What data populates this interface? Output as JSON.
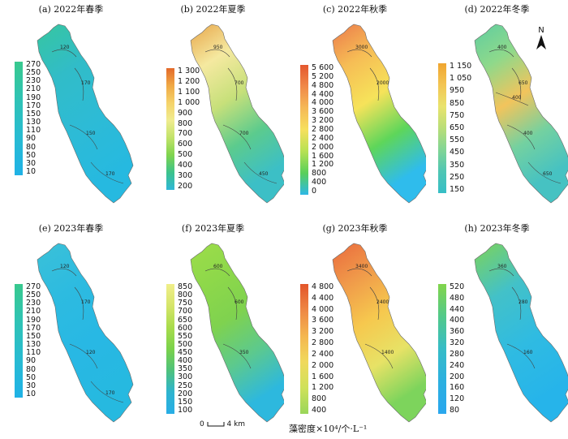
{
  "panels": [
    {
      "title": "(a) 2022年春季",
      "ticks": [
        "270",
        "250",
        "230",
        "210",
        "190",
        "170",
        "150",
        "130",
        "110",
        "90",
        "80",
        "50",
        "30",
        "10"
      ],
      "colors": [
        "#37c6a0",
        "#31bcc8",
        "#2dbbd6",
        "#26b9e0"
      ],
      "contours": [
        "120",
        "170",
        "150",
        "170"
      ]
    },
    {
      "title": "(b) 2022年夏季",
      "ticks": [
        "1 300",
        "1 200",
        "1 100",
        "1 000",
        "900",
        "800",
        "700",
        "600",
        "500",
        "400",
        "300",
        "200"
      ],
      "colors": [
        "#e8a64a",
        "#f5e9a0",
        "#c7e07a",
        "#5ccb8d",
        "#3cbfc6"
      ],
      "contours": [
        "950",
        "700",
        "700",
        "450"
      ]
    },
    {
      "title": "(c) 2022年秋季",
      "ticks": [
        "5 600",
        "5 200",
        "4 800",
        "4 400",
        "4 000",
        "3 600",
        "3 200",
        "2 800",
        "2 400",
        "2 000",
        "1 600",
        "1 200",
        "800",
        "400",
        "0"
      ],
      "colors": [
        "#ec7a4b",
        "#f6bd55",
        "#f6e35a",
        "#5ed65a",
        "#2fbcec"
      ],
      "contours": [
        "3000",
        "2000"
      ]
    },
    {
      "title": "(d) 2022年冬季",
      "ticks": [
        "1 150",
        "1 050",
        "950",
        "850",
        "750",
        "650",
        "550",
        "450",
        "350",
        "250",
        "150"
      ],
      "colors": [
        "#5fcda0",
        "#8ed98b",
        "#f2c45c",
        "#74d1a0",
        "#46c2c2"
      ],
      "contours": [
        "400",
        "650",
        "400",
        "650",
        "400"
      ]
    },
    {
      "title": "(e) 2023年春季",
      "ticks": [
        "270",
        "250",
        "230",
        "210",
        "190",
        "170",
        "150",
        "130",
        "110",
        "90",
        "80",
        "50",
        "30",
        "10"
      ],
      "colors": [
        "#3bc1d8",
        "#2dbbe0",
        "#28b8e4",
        "#26b9e0"
      ],
      "contours": [
        "120",
        "170",
        "120",
        "170"
      ]
    },
    {
      "title": "(f) 2023年夏季",
      "ticks": [
        "850",
        "800",
        "750",
        "700",
        "650",
        "600",
        "550",
        "500",
        "450",
        "400",
        "350",
        "300",
        "250",
        "200",
        "150",
        "100"
      ],
      "colors": [
        "#9ddd4a",
        "#8ed84a",
        "#7fd24f",
        "#5cc98e",
        "#2db8de"
      ],
      "contours": [
        "600",
        "600",
        "350"
      ]
    },
    {
      "title": "(g) 2023年秋季",
      "ticks": [
        "4 800",
        "4 400",
        "4 000",
        "3 600",
        "3 200",
        "2 800",
        "2 400",
        "2 000",
        "1 600",
        "1 200",
        "800",
        "400"
      ],
      "colors": [
        "#ea6a3d",
        "#f09a4a",
        "#f6c84e",
        "#e7e266",
        "#7dd45c"
      ],
      "contours": [
        "3400",
        "2400",
        "1400"
      ]
    },
    {
      "title": "(h) 2023年冬季",
      "ticks": [
        "520",
        "480",
        "440",
        "400",
        "360",
        "320",
        "280",
        "240",
        "200",
        "160",
        "120",
        "80"
      ],
      "colors": [
        "#7dd35a",
        "#43c1c8",
        "#2fbbe2",
        "#26b4ea"
      ],
      "contours": [
        "360",
        "280",
        "160"
      ]
    }
  ],
  "north_label": "N",
  "scale": {
    "zero": "0",
    "dist": "4 km"
  },
  "unit": "藻密度×10⁴/个·L⁻¹",
  "legend_gradients": {
    "a": [
      "#38c98e",
      "#2fc3b5",
      "#28bbd2",
      "#1fb2e6"
    ],
    "b": [
      "#e36a2a",
      "#f0a945",
      "#f5d36a",
      "#f0ec8f",
      "#c2e36a",
      "#7fd44e",
      "#3cc38c",
      "#2fb7d8"
    ],
    "c": [
      "#e4572e",
      "#f08948",
      "#f5b957",
      "#f6e05d",
      "#b6e153",
      "#59cf5a",
      "#2eb8e6"
    ],
    "d": [
      "#f0a530",
      "#f3c553",
      "#e9e36d",
      "#b9de78",
      "#81d595",
      "#4fc6b4",
      "#36bec6"
    ],
    "e": [
      "#38c98e",
      "#2fc3b5",
      "#28bbd2",
      "#1fb2e6"
    ],
    "f": [
      "#f1ef8a",
      "#d6e56a",
      "#a9dc4c",
      "#7bd24b",
      "#4fc27c",
      "#2eb4cf",
      "#28aee6"
    ],
    "g": [
      "#e3552a",
      "#ee8744",
      "#f4b64f",
      "#f0d95c",
      "#cfe15a",
      "#9ad65a"
    ],
    "h": [
      "#82d54b",
      "#52c98a",
      "#36bcc7",
      "#2cb0e0",
      "#2aa7ee"
    ]
  }
}
